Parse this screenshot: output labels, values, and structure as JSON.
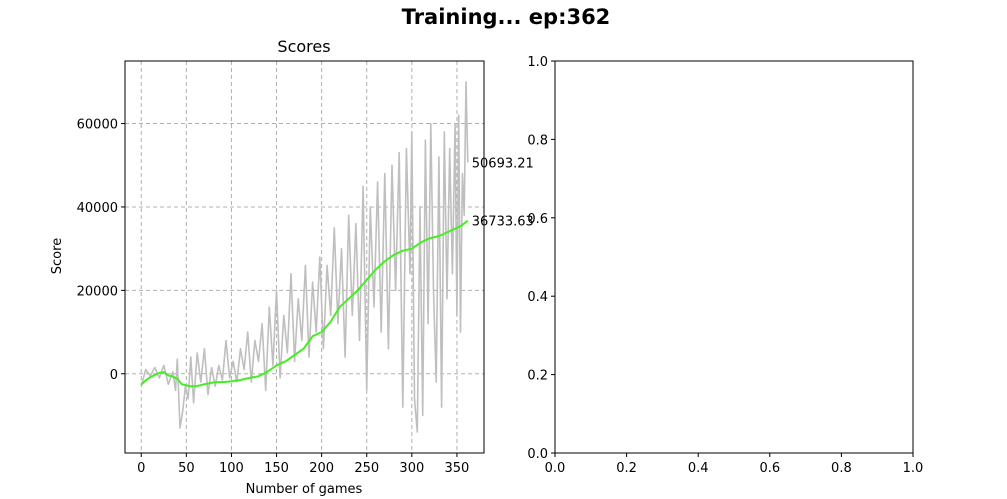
{
  "figure": {
    "suptitle": "Training... ep:362"
  },
  "chart_data": [
    {
      "type": "line",
      "title": "Scores",
      "xlabel": "Number of games",
      "ylabel": "Score",
      "xlim": [
        -18,
        380
      ],
      "ylim": [
        -19000,
        75000
      ],
      "xticks": [
        0,
        50,
        100,
        150,
        200,
        250,
        300,
        350
      ],
      "yticks": [
        0,
        20000,
        40000,
        60000
      ],
      "xtick_labels": [
        "0",
        "50",
        "100",
        "150",
        "200",
        "250",
        "300",
        "350"
      ],
      "ytick_labels": [
        "0",
        "20000",
        "40000",
        "60000"
      ],
      "grid": true,
      "series": [
        {
          "color": "#bfbfbf",
          "x": [
            0,
            5,
            10,
            15,
            20,
            25,
            30,
            35,
            38,
            40,
            43,
            46,
            49,
            52,
            55,
            58,
            62,
            66,
            70,
            74,
            78,
            82,
            86,
            90,
            94,
            98,
            102,
            106,
            110,
            114,
            118,
            122,
            126,
            130,
            134,
            138,
            142,
            146,
            150,
            154,
            158,
            162,
            166,
            170,
            174,
            178,
            182,
            186,
            190,
            194,
            198,
            202,
            206,
            210,
            214,
            218,
            222,
            226,
            230,
            234,
            238,
            242,
            246,
            250,
            254,
            258,
            262,
            266,
            270,
            274,
            278,
            282,
            286,
            290,
            294,
            298,
            300,
            303,
            306,
            309,
            312,
            315,
            318,
            321,
            324,
            327,
            330,
            333,
            336,
            339,
            342,
            345,
            348,
            350,
            352,
            354,
            356,
            358,
            360,
            362
          ],
          "y": [
            -3000,
            1000,
            -500,
            1500,
            -1000,
            2000,
            -2500,
            500,
            -4000,
            3500,
            -13000,
            -9000,
            -3000,
            -6000,
            4000,
            -7000,
            5000,
            -2000,
            6000,
            -5000,
            1500,
            -3000,
            2000,
            -1500,
            8000,
            -1000,
            3000,
            -2000,
            6000,
            1000,
            10000,
            -2000,
            8000,
            3000,
            12000,
            -4000,
            16000,
            2000,
            20000,
            -1000,
            14000,
            5000,
            24000,
            3000,
            18000,
            8000,
            26000,
            4000,
            22000,
            10000,
            28000,
            6000,
            26000,
            14000,
            35000,
            12000,
            30000,
            4000,
            38000,
            14000,
            36000,
            8000,
            45000,
            -4000,
            40000,
            16000,
            46000,
            10000,
            48000,
            6000,
            50000,
            20000,
            53000,
            -8000,
            54000,
            24000,
            58000,
            -6000,
            -14000,
            40000,
            -10000,
            56000,
            12000,
            60000,
            20000,
            -2000,
            52000,
            -8000,
            58000,
            18000,
            54000,
            24000,
            60000,
            14000,
            62000,
            10000,
            48000,
            38000,
            70000,
            50693.21
          ]
        },
        {
          "color": "#44ee22",
          "x": [
            0,
            5,
            10,
            15,
            20,
            25,
            30,
            35,
            40,
            45,
            50,
            55,
            60,
            65,
            70,
            75,
            80,
            85,
            90,
            95,
            100,
            110,
            120,
            130,
            140,
            150,
            160,
            170,
            180,
            190,
            200,
            210,
            220,
            230,
            240,
            250,
            260,
            270,
            280,
            290,
            300,
            310,
            320,
            330,
            340,
            350,
            355,
            362
          ],
          "y": [
            -2600,
            -1600,
            -800,
            -300,
            200,
            400,
            -400,
            -700,
            -1200,
            -2500,
            -2800,
            -3000,
            -3000,
            -2800,
            -2500,
            -2300,
            -2100,
            -2000,
            -2000,
            -1900,
            -1800,
            -1500,
            -1000,
            -600,
            500,
            2000,
            3000,
            4500,
            6000,
            9000,
            10000,
            12500,
            16000,
            18000,
            20000,
            22500,
            25000,
            27000,
            28500,
            29500,
            30000,
            31500,
            32500,
            33000,
            34000,
            35000,
            35500,
            36733.63
          ]
        }
      ],
      "annotations": [
        {
          "text": "50693.21",
          "x": 362,
          "y": 50693.21
        },
        {
          "text": "36733.63",
          "x": 362,
          "y": 36733.63
        }
      ]
    },
    {
      "type": "line",
      "title": "",
      "xlabel": "",
      "ylabel": "",
      "xlim": [
        0,
        1
      ],
      "ylim": [
        0,
        1
      ],
      "xticks": [
        0,
        0.2,
        0.4,
        0.6,
        0.8,
        1.0
      ],
      "yticks": [
        0,
        0.2,
        0.4,
        0.6,
        0.8,
        1.0
      ],
      "xtick_labels": [
        "0.0",
        "0.2",
        "0.4",
        "0.6",
        "0.8",
        "1.0"
      ],
      "ytick_labels": [
        "0.0",
        "0.2",
        "0.4",
        "0.6",
        "0.8",
        "1.0"
      ],
      "grid": false,
      "series": []
    }
  ]
}
